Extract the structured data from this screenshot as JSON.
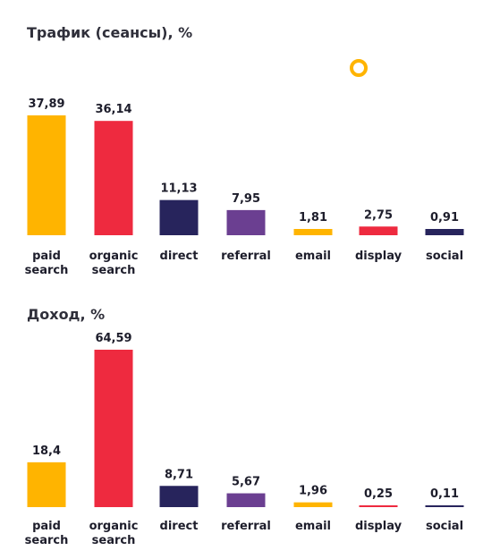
{
  "colors": {
    "paid search": "#ffb400",
    "organic search": "#ee2a3f",
    "direct": "#27245c",
    "referral": "#6b3f91",
    "email": "#ffb400",
    "display": "#ee2a3f",
    "social": "#27245c",
    "accent_ring": "#ffb400"
  },
  "decor": {
    "icon": "circle-ring-icon"
  },
  "chart_data": [
    {
      "type": "bar",
      "title": "Трафик (сеансы), %",
      "categories": [
        "paid search",
        "organic search",
        "direct",
        "referral",
        "email",
        "display",
        "social"
      ],
      "category_lines": [
        [
          "paid",
          "search"
        ],
        [
          "organic",
          "search"
        ],
        [
          "direct"
        ],
        [
          "referral"
        ],
        [
          "email"
        ],
        [
          "display"
        ],
        [
          "social"
        ]
      ],
      "values": [
        37.89,
        36.14,
        11.13,
        7.95,
        1.81,
        2.75,
        0.91
      ],
      "value_labels": [
        "37,89",
        "36,14",
        "11,13",
        "7,95",
        "1,81",
        "2,75",
        "0,91"
      ],
      "ylim": [
        0,
        40
      ],
      "grid": false,
      "legend": "none"
    },
    {
      "type": "bar",
      "title": "Доход, %",
      "categories": [
        "paid search",
        "organic search",
        "direct",
        "referral",
        "email",
        "display",
        "social"
      ],
      "category_lines": [
        [
          "paid",
          "search"
        ],
        [
          "organic",
          "search"
        ],
        [
          "direct"
        ],
        [
          "referral"
        ],
        [
          "email"
        ],
        [
          "display"
        ],
        [
          "social"
        ]
      ],
      "values": [
        18.4,
        64.59,
        8.71,
        5.67,
        1.96,
        0.25,
        0.11
      ],
      "value_labels": [
        "18,4",
        "64,59",
        "8,71",
        "5,67",
        "1,96",
        "0,25",
        "0,11"
      ],
      "ylim": [
        0,
        65
      ],
      "grid": false,
      "legend": "none"
    }
  ]
}
